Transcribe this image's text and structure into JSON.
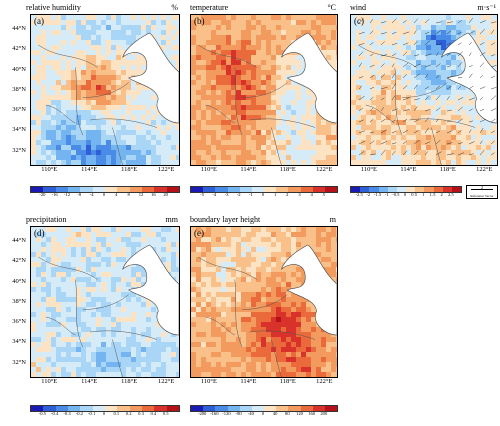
{
  "lat_labels": [
    "44°N",
    "42°N",
    "40°N",
    "38°N",
    "36°N",
    "34°N",
    "32°N"
  ],
  "lon_labels": [
    "110°E",
    "114°E",
    "118°E",
    "122°E"
  ],
  "panels": [
    {
      "key": "rh",
      "title": "relative humidity",
      "unit": "%",
      "label": "(a)",
      "cbar_ticks": [
        "-20",
        "-16",
        "-12",
        "-8",
        "-4",
        "0",
        "4",
        "8",
        "12",
        "16",
        "20"
      ],
      "cbar_colors": [
        "#1a1ab4",
        "#2e5fd6",
        "#4a8be8",
        "#74b4f0",
        "#a9d6f6",
        "#d5ecf8",
        "#fbe3c4",
        "#f9c08a",
        "#f39a5e",
        "#ea6a3c",
        "#d8322a",
        "#b4111a"
      ],
      "pattern": "rh",
      "show_lat": true,
      "show_lon": true
    },
    {
      "key": "t",
      "title": "temperature",
      "unit": "°C",
      "label": "(b)",
      "cbar_ticks": [
        "-5",
        "-4",
        "-3",
        "-2",
        "-1",
        "0",
        "1",
        "2",
        "3",
        "4",
        "5"
      ],
      "cbar_colors": [
        "#1a1ab4",
        "#2e5fd6",
        "#4a8be8",
        "#74b4f0",
        "#a9d6f6",
        "#d5ecf8",
        "#fbe3c4",
        "#f9c08a",
        "#f39a5e",
        "#ea6a3c",
        "#d8322a",
        "#b4111a"
      ],
      "pattern": "t",
      "show_lat": false,
      "show_lon": true
    },
    {
      "key": "wind",
      "title": "wind",
      "unit": "m·s⁻¹",
      "label": "(c)",
      "cbar_ticks": [
        "-2.5",
        "-2",
        "-1.5",
        "-1",
        "-0.5",
        "0",
        "0.5",
        "1",
        "1.5",
        "2",
        "2.5"
      ],
      "cbar_colors": [
        "#1a1ab4",
        "#2e5fd6",
        "#4a8be8",
        "#74b4f0",
        "#a9d6f6",
        "#d5ecf8",
        "#fbe3c4",
        "#f9c08a",
        "#f39a5e",
        "#ea6a3c",
        "#d8322a",
        "#b4111a"
      ],
      "pattern": "wind",
      "show_lat": false,
      "show_lon": true,
      "reference_vector": {
        "value": "2",
        "text": "Reference Vector"
      }
    },
    {
      "key": "pr",
      "title": "precipitation",
      "unit": "mm",
      "label": "(d)",
      "cbar_ticks": [
        "-0.5",
        "-0.4",
        "-0.3",
        "-0.2",
        "-0.1",
        "0",
        "0.1",
        "0.2",
        "0.3",
        "0.4",
        "0.5"
      ],
      "cbar_colors": [
        "#1a1ab4",
        "#2e5fd6",
        "#4a8be8",
        "#74b4f0",
        "#a9d6f6",
        "#d5ecf8",
        "#fbe3c4",
        "#f9c08a",
        "#f39a5e",
        "#ea6a3c",
        "#d8322a",
        "#b4111a"
      ],
      "pattern": "pr",
      "show_lat": true,
      "show_lon": true
    },
    {
      "key": "blh",
      "title": "boundary layer height",
      "unit": "m",
      "label": "(e)",
      "cbar_ticks": [
        "-200",
        "-160",
        "-120",
        "-80",
        "-40",
        "0",
        "40",
        "80",
        "120",
        "160",
        "200"
      ],
      "cbar_colors": [
        "#1a1ab4",
        "#2e5fd6",
        "#4a8be8",
        "#74b4f0",
        "#a9d6f6",
        "#d5ecf8",
        "#fbe3c4",
        "#f9c08a",
        "#f39a5e",
        "#ea6a3c",
        "#d8322a",
        "#b4111a"
      ],
      "pattern": "blh",
      "show_lat": false,
      "show_lon": true
    }
  ]
}
